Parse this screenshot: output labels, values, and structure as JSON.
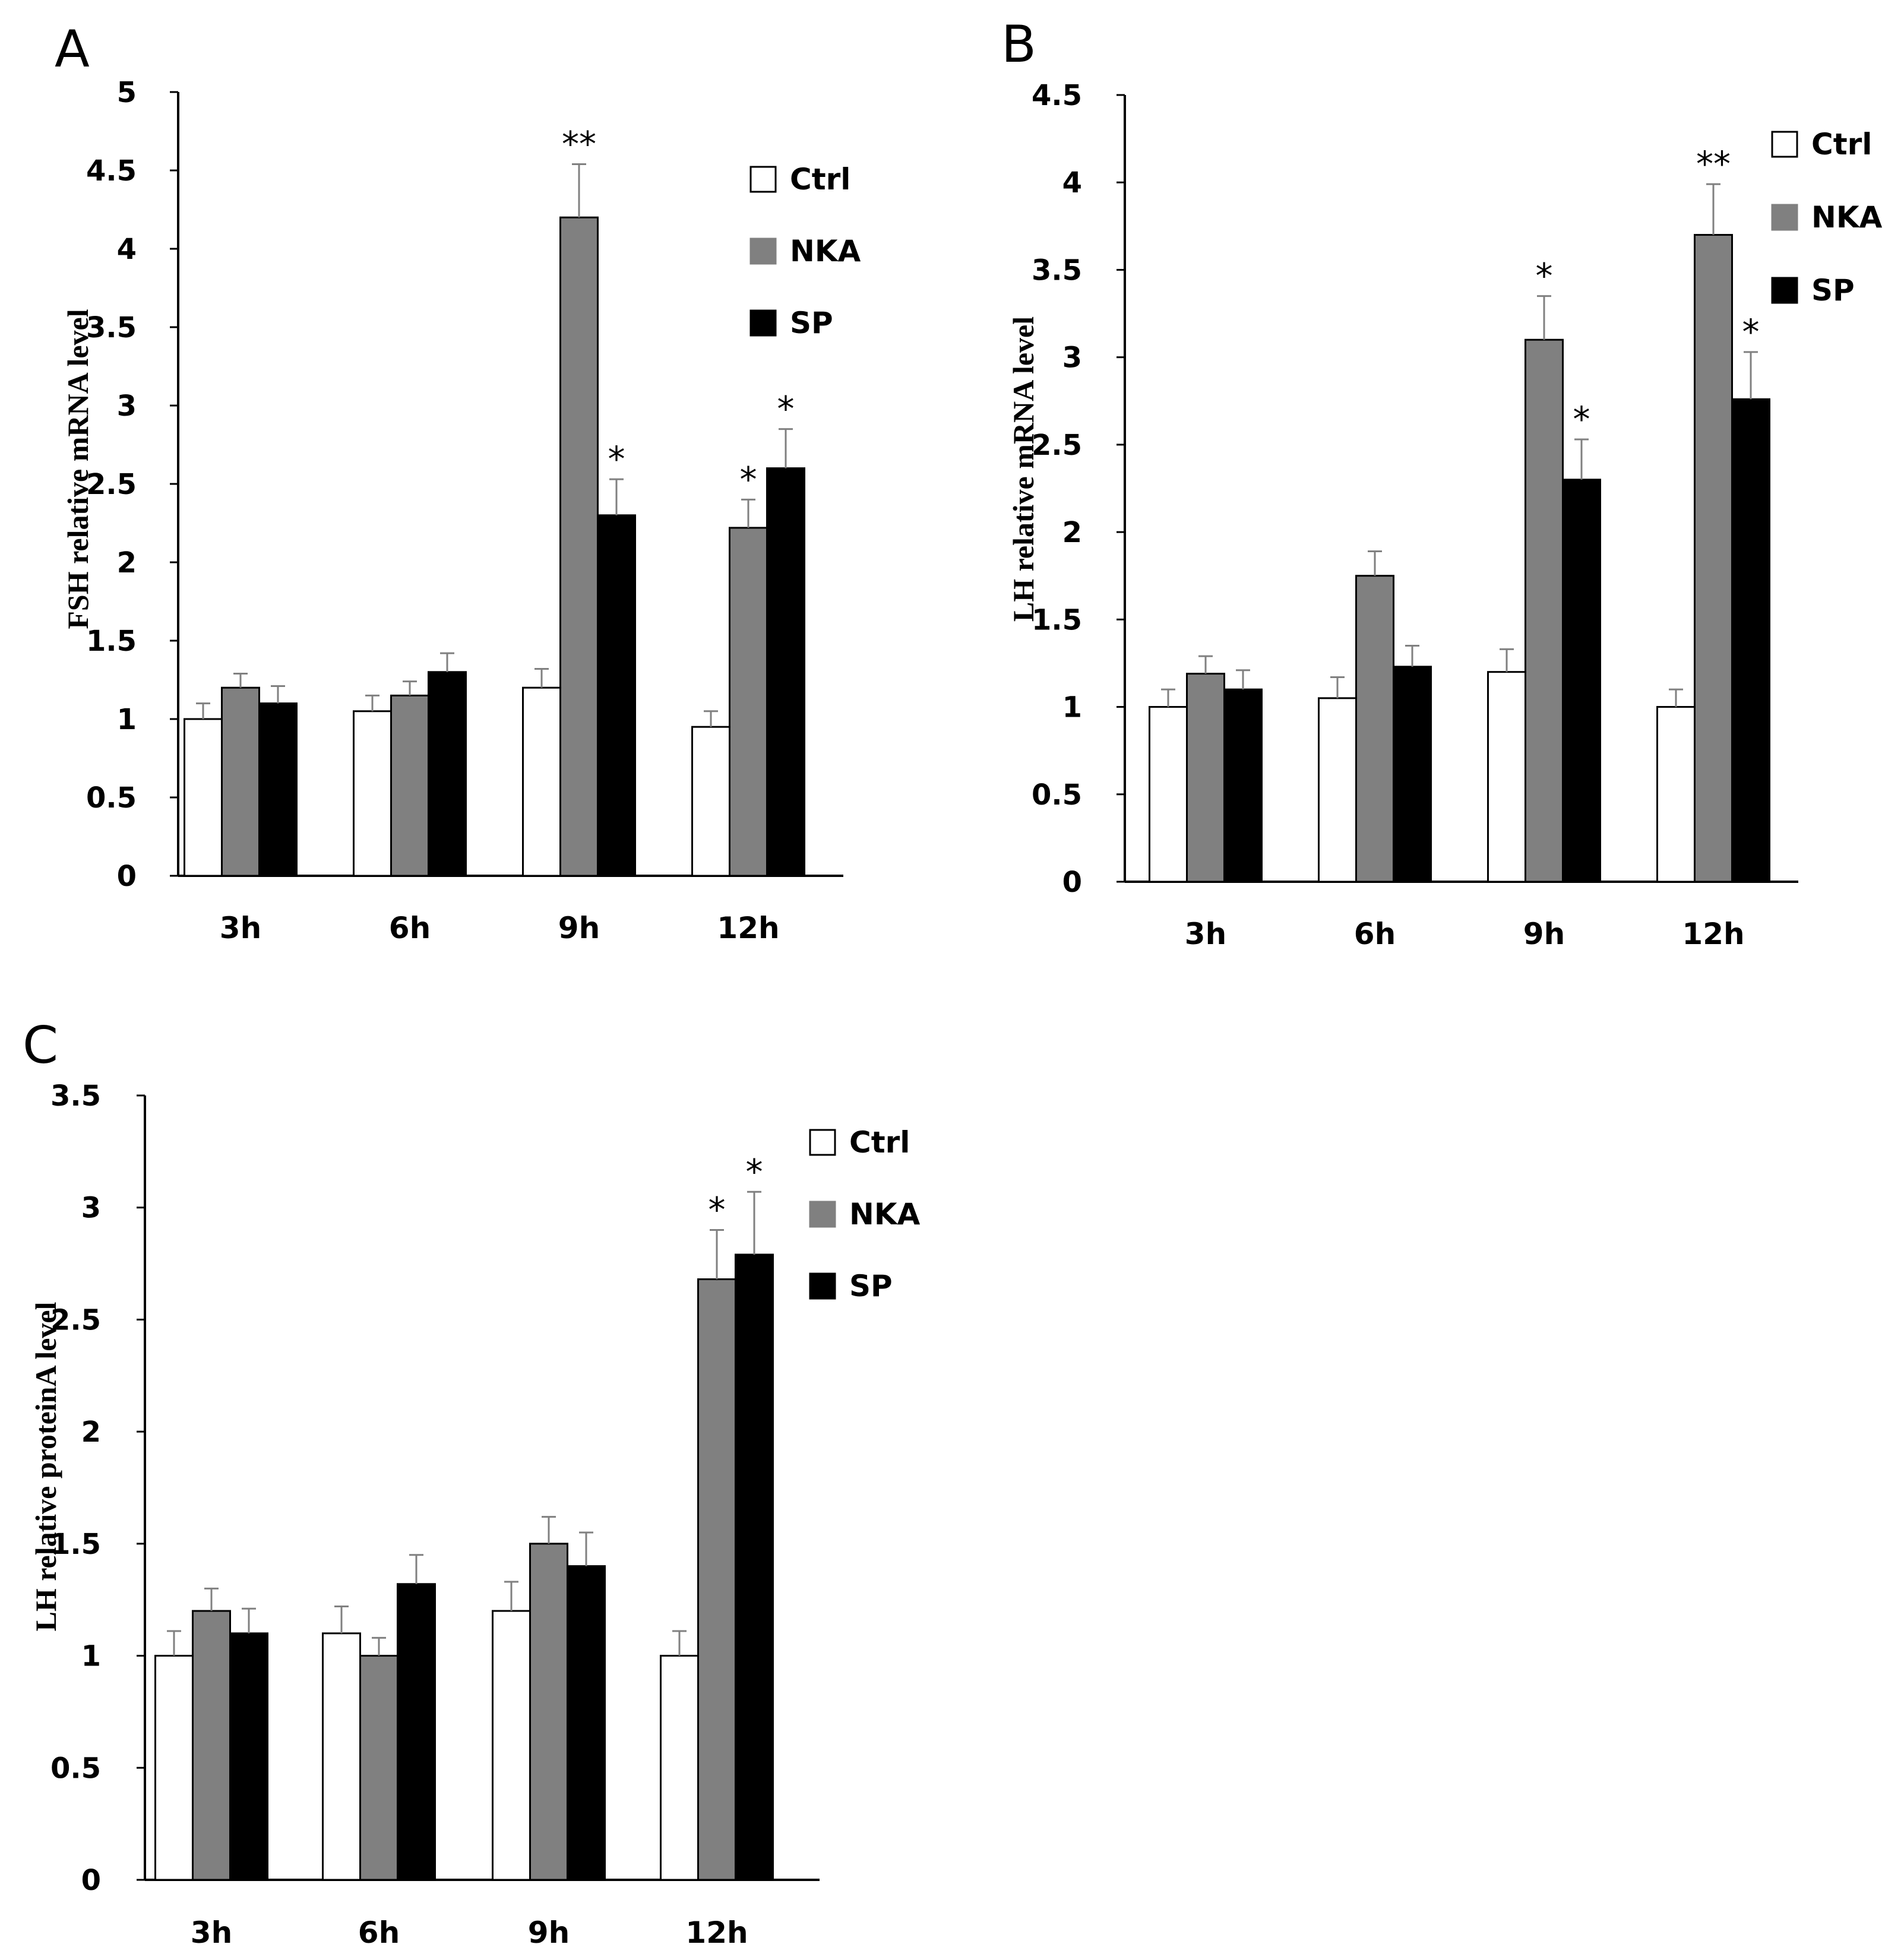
{
  "colors": {
    "Ctrl": "#ffffff",
    "NKA": "#808080",
    "SP": "#000000",
    "axis": "#000000",
    "errorbar": "#808080"
  },
  "chart_data": [
    {
      "panel": "A",
      "type": "bar",
      "categories": [
        "3h",
        "6h",
        "9h",
        "12h"
      ],
      "series": [
        {
          "name": "Ctrl",
          "values": [
            1.0,
            1.05,
            1.2,
            0.95
          ],
          "errors": [
            0.1,
            0.1,
            0.12,
            0.1
          ]
        },
        {
          "name": "NKA",
          "values": [
            1.2,
            1.15,
            4.2,
            2.22
          ],
          "errors": [
            0.09,
            0.09,
            0.34,
            0.18
          ]
        },
        {
          "name": "SP",
          "values": [
            1.1,
            1.3,
            2.3,
            2.6
          ],
          "errors": [
            0.11,
            0.12,
            0.23,
            0.25
          ]
        }
      ],
      "significance": [
        {
          "series": "NKA",
          "category": "9h",
          "label": "**"
        },
        {
          "series": "SP",
          "category": "9h",
          "label": "*"
        },
        {
          "series": "NKA",
          "category": "12h",
          "label": "*"
        },
        {
          "series": "SP",
          "category": "12h",
          "label": "*"
        }
      ],
      "xlabel": "",
      "ylabel": "FSH relative mRNA level",
      "ylim": [
        0,
        5
      ],
      "yticks": [
        0,
        0.5,
        1,
        1.5,
        2,
        2.5,
        3,
        3.5,
        4,
        4.5,
        5
      ],
      "legend": "top-right",
      "grid": false
    },
    {
      "panel": "B",
      "type": "bar",
      "categories": [
        "3h",
        "6h",
        "9h",
        "12h"
      ],
      "series": [
        {
          "name": "Ctrl",
          "values": [
            1.0,
            1.05,
            1.2,
            1.0
          ],
          "errors": [
            0.1,
            0.12,
            0.13,
            0.1
          ]
        },
        {
          "name": "NKA",
          "values": [
            1.19,
            1.75,
            3.1,
            3.7
          ],
          "errors": [
            0.1,
            0.14,
            0.25,
            0.29
          ]
        },
        {
          "name": "SP",
          "values": [
            1.1,
            1.23,
            2.3,
            2.76
          ],
          "errors": [
            0.11,
            0.12,
            0.23,
            0.27
          ]
        }
      ],
      "significance": [
        {
          "series": "NKA",
          "category": "9h",
          "label": "*"
        },
        {
          "series": "SP",
          "category": "9h",
          "label": "*"
        },
        {
          "series": "NKA",
          "category": "12h",
          "label": "**"
        },
        {
          "series": "SP",
          "category": "12h",
          "label": "*"
        }
      ],
      "xlabel": "",
      "ylabel": "LH relative mRNA level",
      "ylim": [
        0,
        4.5
      ],
      "yticks": [
        0,
        0.5,
        1,
        1.5,
        2,
        2.5,
        3,
        3.5,
        4,
        4.5
      ],
      "legend": "top-right",
      "grid": false
    },
    {
      "panel": "C",
      "type": "bar",
      "categories": [
        "3h",
        "6h",
        "9h",
        "12h"
      ],
      "series": [
        {
          "name": "Ctrl",
          "values": [
            1.0,
            1.1,
            1.2,
            1.0
          ],
          "errors": [
            0.11,
            0.12,
            0.13,
            0.11
          ]
        },
        {
          "name": "NKA",
          "values": [
            1.2,
            1.0,
            1.5,
            2.68
          ],
          "errors": [
            0.1,
            0.08,
            0.12,
            0.22
          ]
        },
        {
          "name": "SP",
          "values": [
            1.1,
            1.32,
            1.4,
            2.79
          ],
          "errors": [
            0.11,
            0.13,
            0.15,
            0.28
          ]
        }
      ],
      "significance": [
        {
          "series": "NKA",
          "category": "12h",
          "label": "*"
        },
        {
          "series": "SP",
          "category": "12h",
          "label": "*"
        }
      ],
      "xlabel": "",
      "ylabel": "LH relative proteinA level",
      "ylim": [
        0,
        3.5
      ],
      "yticks": [
        0,
        0.5,
        1,
        1.5,
        2,
        2.5,
        3,
        3.5
      ],
      "legend": "top-right",
      "grid": false
    }
  ]
}
